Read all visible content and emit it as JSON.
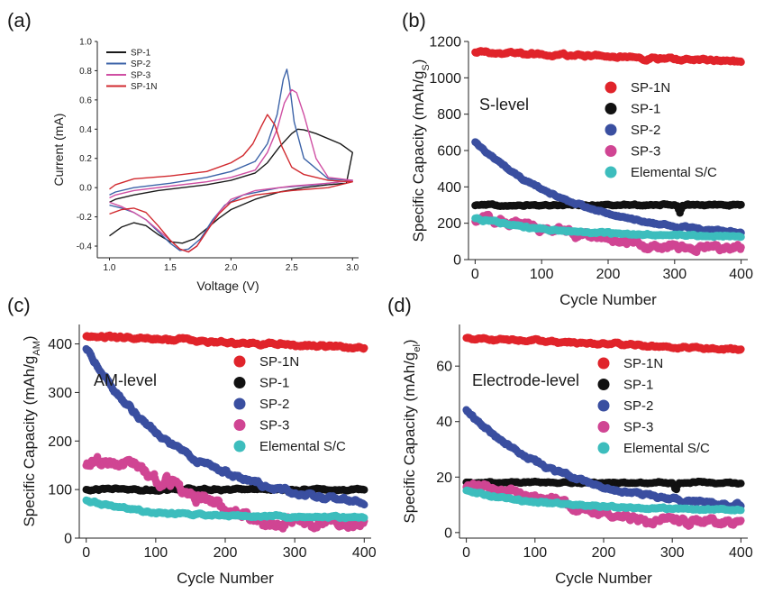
{
  "chart_data": [
    {
      "id": "a",
      "panel_label": "(a)",
      "type": "line",
      "xlabel": "Voltage (V)",
      "ylabel": "Current (mA)",
      "xlim": [
        0.9,
        3.05
      ],
      "ylim": [
        -0.48,
        1.0
      ],
      "xticks": [
        "1.0",
        "1.5",
        "2.0",
        "2.5",
        "3.0"
      ],
      "yticks": [
        "-0.4",
        "-0.2",
        "0.0",
        "0.2",
        "0.4",
        "0.6",
        "0.8",
        "1.0"
      ],
      "series": [
        {
          "name": "SP-1",
          "color": "#1a1a1a",
          "points": [
            [
              1.0,
              -0.33
            ],
            [
              1.05,
              -0.3
            ],
            [
              1.1,
              -0.27
            ],
            [
              1.2,
              -0.24
            ],
            [
              1.3,
              -0.26
            ],
            [
              1.4,
              -0.32
            ],
            [
              1.5,
              -0.37
            ],
            [
              1.6,
              -0.38
            ],
            [
              1.7,
              -0.35
            ],
            [
              1.8,
              -0.28
            ],
            [
              1.9,
              -0.21
            ],
            [
              2.0,
              -0.15
            ],
            [
              2.2,
              -0.08
            ],
            [
              2.4,
              -0.03
            ],
            [
              2.6,
              0.0
            ],
            [
              2.8,
              0.02
            ],
            [
              2.95,
              0.03
            ],
            [
              3.0,
              0.24
            ],
            [
              2.9,
              0.3
            ],
            [
              2.7,
              0.37
            ],
            [
              2.6,
              0.395
            ],
            [
              2.55,
              0.4
            ],
            [
              2.5,
              0.37
            ],
            [
              2.4,
              0.28
            ],
            [
              2.3,
              0.17
            ],
            [
              2.2,
              0.1
            ],
            [
              2.0,
              0.05
            ],
            [
              1.8,
              0.02
            ],
            [
              1.6,
              0.0
            ],
            [
              1.4,
              -0.02
            ],
            [
              1.2,
              -0.05
            ],
            [
              1.05,
              -0.08
            ],
            [
              1.0,
              -0.1
            ]
          ]
        },
        {
          "name": "SP-2",
          "color": "#3c63a8",
          "points": [
            [
              1.0,
              -0.12
            ],
            [
              1.1,
              -0.14
            ],
            [
              1.2,
              -0.17
            ],
            [
              1.3,
              -0.22
            ],
            [
              1.4,
              -0.3
            ],
            [
              1.5,
              -0.38
            ],
            [
              1.58,
              -0.43
            ],
            [
              1.65,
              -0.42
            ],
            [
              1.75,
              -0.35
            ],
            [
              1.85,
              -0.22
            ],
            [
              1.95,
              -0.12
            ],
            [
              2.1,
              -0.05
            ],
            [
              2.4,
              0.0
            ],
            [
              2.7,
              0.02
            ],
            [
              3.0,
              0.05
            ],
            [
              2.8,
              0.06
            ],
            [
              2.6,
              0.2
            ],
            [
              2.52,
              0.45
            ],
            [
              2.48,
              0.72
            ],
            [
              2.46,
              0.81
            ],
            [
              2.43,
              0.74
            ],
            [
              2.38,
              0.5
            ],
            [
              2.3,
              0.3
            ],
            [
              2.2,
              0.18
            ],
            [
              2.0,
              0.11
            ],
            [
              1.8,
              0.07
            ],
            [
              1.5,
              0.03
            ],
            [
              1.2,
              0.0
            ],
            [
              1.05,
              -0.03
            ],
            [
              1.0,
              -0.05
            ]
          ]
        },
        {
          "name": "SP-3",
          "color": "#cf4fa3",
          "points": [
            [
              1.0,
              -0.1
            ],
            [
              1.1,
              -0.13
            ],
            [
              1.2,
              -0.17
            ],
            [
              1.3,
              -0.22
            ],
            [
              1.4,
              -0.29
            ],
            [
              1.5,
              -0.36
            ],
            [
              1.58,
              -0.42
            ],
            [
              1.65,
              -0.44
            ],
            [
              1.72,
              -0.4
            ],
            [
              1.8,
              -0.3
            ],
            [
              1.9,
              -0.17
            ],
            [
              2.0,
              -0.08
            ],
            [
              2.2,
              -0.02
            ],
            [
              2.5,
              0.01
            ],
            [
              2.8,
              0.03
            ],
            [
              3.0,
              0.05
            ],
            [
              2.8,
              0.07
            ],
            [
              2.7,
              0.2
            ],
            [
              2.6,
              0.5
            ],
            [
              2.54,
              0.65
            ],
            [
              2.5,
              0.67
            ],
            [
              2.44,
              0.58
            ],
            [
              2.38,
              0.4
            ],
            [
              2.3,
              0.24
            ],
            [
              2.2,
              0.12
            ],
            [
              2.0,
              0.07
            ],
            [
              1.8,
              0.04
            ],
            [
              1.5,
              0.01
            ],
            [
              1.2,
              -0.02
            ],
            [
              1.05,
              -0.05
            ],
            [
              1.0,
              -0.07
            ]
          ]
        },
        {
          "name": "SP-1N",
          "color": "#d12a2f",
          "points": [
            [
              1.0,
              -0.18
            ],
            [
              1.1,
              -0.15
            ],
            [
              1.2,
              -0.14
            ],
            [
              1.3,
              -0.17
            ],
            [
              1.4,
              -0.26
            ],
            [
              1.5,
              -0.36
            ],
            [
              1.58,
              -0.42
            ],
            [
              1.65,
              -0.44
            ],
            [
              1.72,
              -0.4
            ],
            [
              1.8,
              -0.3
            ],
            [
              1.9,
              -0.18
            ],
            [
              2.0,
              -0.1
            ],
            [
              2.2,
              -0.05
            ],
            [
              2.5,
              -0.02
            ],
            [
              2.8,
              0.0
            ],
            [
              3.0,
              0.04
            ],
            [
              2.8,
              0.05
            ],
            [
              2.6,
              0.09
            ],
            [
              2.5,
              0.14
            ],
            [
              2.42,
              0.28
            ],
            [
              2.36,
              0.43
            ],
            [
              2.3,
              0.5
            ],
            [
              2.25,
              0.42
            ],
            [
              2.18,
              0.3
            ],
            [
              2.1,
              0.22
            ],
            [
              2.0,
              0.17
            ],
            [
              1.8,
              0.11
            ],
            [
              1.5,
              0.08
            ],
            [
              1.2,
              0.06
            ],
            [
              1.05,
              0.02
            ],
            [
              1.0,
              -0.01
            ]
          ]
        }
      ]
    },
    {
      "id": "b",
      "panel_label": "(b)",
      "type": "scatter",
      "annotation": "S-level",
      "xlabel": "Cycle Number",
      "ylabel": "Specific Capacity (mAh/g",
      "ylabel_sub": "S",
      "ylabel_end": ")",
      "xlim": [
        -10,
        410
      ],
      "ylim": [
        0,
        1200
      ],
      "xticks": [
        "0",
        "100",
        "200",
        "300",
        "400"
      ],
      "yticks": [
        "0",
        "200",
        "400",
        "600",
        "800",
        "1000",
        "1200"
      ],
      "series": [
        {
          "name": "SP-1N",
          "color": "#e0242b",
          "model": {
            "kind": "linear",
            "v0": 1145,
            "v1": 1088,
            "start": 1150,
            "noise": 10
          }
        },
        {
          "name": "SP-1",
          "color": "#111111",
          "model": {
            "kind": "flat",
            "v0": 300,
            "noise": 6,
            "dip_at": 308,
            "dip": 40
          }
        },
        {
          "name": "SP-2",
          "color": "#3a4fa0",
          "model": {
            "kind": "decay",
            "v0": 650,
            "vinf": 110,
            "tau": 150,
            "noise": 8
          }
        },
        {
          "name": "SP-3",
          "color": "#d04593",
          "model": {
            "kind": "pink",
            "v0": 220,
            "v1": 70,
            "noise": 22
          }
        },
        {
          "name": "Elemental S/C",
          "color": "#3dbdbd",
          "model": {
            "kind": "decay",
            "v0": 230,
            "vinf": 125,
            "tau": 120,
            "noise": 8
          }
        }
      ]
    },
    {
      "id": "c",
      "panel_label": "(c)",
      "type": "scatter",
      "annotation": "AM-level",
      "xlabel": "Cycle Number",
      "ylabel": "Specific Capacity (mAh/g",
      "ylabel_sub": "AM",
      "ylabel_end": ")",
      "xlim": [
        -10,
        410
      ],
      "ylim": [
        0,
        440
      ],
      "xticks": [
        "0",
        "100",
        "200",
        "300",
        "400"
      ],
      "yticks": [
        "0",
        "100",
        "200",
        "300",
        "400"
      ],
      "series": [
        {
          "name": "SP-1N",
          "color": "#e0242b",
          "model": {
            "kind": "linear",
            "v0": 416,
            "v1": 392,
            "noise": 4
          }
        },
        {
          "name": "SP-1",
          "color": "#111111",
          "model": {
            "kind": "flat",
            "v0": 100,
            "noise": 3
          }
        },
        {
          "name": "SP-2",
          "color": "#3a4fa0",
          "model": {
            "kind": "decay",
            "v0": 390,
            "vinf": 55,
            "tau": 140,
            "noise": 6
          }
        },
        {
          "name": "SP-3",
          "color": "#d04593",
          "model": {
            "kind": "pink",
            "v0": 150,
            "v1": 30,
            "noise": 14,
            "peak": 160
          }
        },
        {
          "name": "Elemental S/C",
          "color": "#3dbdbd",
          "model": {
            "kind": "decay",
            "v0": 78,
            "vinf": 42,
            "tau": 90,
            "noise": 3
          }
        }
      ]
    },
    {
      "id": "d",
      "panel_label": "(d)",
      "type": "scatter",
      "annotation": "Electrode-level",
      "xlabel": "Cycle Number",
      "ylabel": "Specific Capacity (mAh/g",
      "ylabel_sub": "el",
      "ylabel_end": ")",
      "xlim": [
        -10,
        410
      ],
      "ylim": [
        -2,
        75
      ],
      "xticks": [
        "0",
        "100",
        "200",
        "300",
        "400"
      ],
      "yticks": [
        "0",
        "20",
        "40",
        "60"
      ],
      "series": [
        {
          "name": "SP-1N",
          "color": "#e0242b",
          "model": {
            "kind": "linear",
            "v0": 70,
            "v1": 66,
            "noise": 0.6
          }
        },
        {
          "name": "SP-1",
          "color": "#111111",
          "model": {
            "kind": "flat",
            "v0": 18,
            "noise": 0.4,
            "dip_at": 305,
            "dip": 3
          }
        },
        {
          "name": "SP-2",
          "color": "#3a4fa0",
          "model": {
            "kind": "decay",
            "v0": 44,
            "vinf": 8,
            "tau": 140,
            "noise": 0.8
          }
        },
        {
          "name": "SP-3",
          "color": "#d04593",
          "model": {
            "kind": "pink",
            "v0": 16,
            "v1": 4,
            "noise": 1.5
          }
        },
        {
          "name": "Elemental S/C",
          "color": "#3dbdbd",
          "model": {
            "kind": "decay",
            "v0": 15,
            "vinf": 8,
            "tau": 120,
            "noise": 0.5
          }
        }
      ]
    }
  ]
}
